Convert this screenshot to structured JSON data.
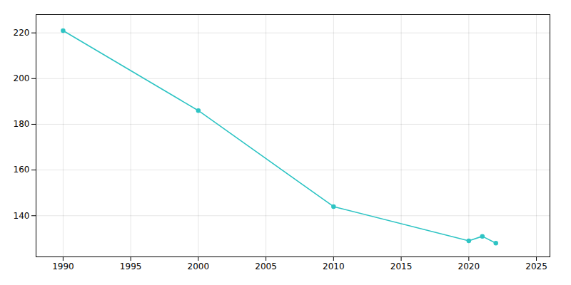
{
  "chart_data": {
    "type": "line",
    "x": [
      1990,
      2000,
      2010,
      2020,
      2021,
      2022
    ],
    "values": [
      221,
      186,
      144,
      129,
      131,
      128
    ],
    "color": "#2ec4c4",
    "marker": "circle",
    "xlim": [
      1988,
      2026
    ],
    "ylim": [
      122,
      228
    ],
    "xticks": [
      1990,
      1995,
      2000,
      2005,
      2010,
      2015,
      2020,
      2025
    ],
    "yticks": [
      140,
      160,
      180,
      200,
      220
    ],
    "grid": true
  }
}
